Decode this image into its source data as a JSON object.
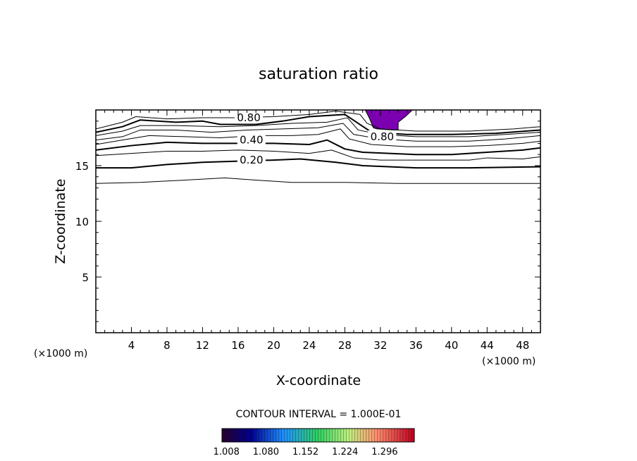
{
  "chart_data": {
    "type": "contour",
    "title": "saturation ratio",
    "xlabel": "X-coordinate",
    "ylabel": "Z-coordinate",
    "x_unit_left": "(×1000 m)",
    "x_unit_right": "(×1000 m)",
    "xlim": [
      0,
      50
    ],
    "ylim": [
      0,
      20
    ],
    "x_ticks": [
      4,
      8,
      12,
      16,
      20,
      24,
      28,
      32,
      36,
      40,
      44,
      48
    ],
    "x_tick_labels": [
      "4",
      "8",
      "12",
      "16",
      "20",
      "24",
      "28",
      "32",
      "36",
      "40",
      "44",
      "48"
    ],
    "y_ticks": [
      5,
      10,
      15
    ],
    "y_tick_labels": [
      "5",
      "10",
      "15"
    ],
    "contour_interval_text": "CONTOUR INTERVAL = 1.000E-01",
    "contour_labels": [
      {
        "text": "0.80",
        "x": 17.2,
        "z": 19.3
      },
      {
        "text": "0.40",
        "x": 17.5,
        "z": 17.3
      },
      {
        "text": "0.20",
        "x": 17.5,
        "z": 15.5
      },
      {
        "text": "0.80",
        "x": 32.2,
        "z": 17.6
      }
    ],
    "contours": [
      {
        "level": 0.1,
        "bold": false,
        "points": [
          [
            0,
            13.4
          ],
          [
            5,
            13.5
          ],
          [
            10,
            13.7
          ],
          [
            14.5,
            13.9
          ],
          [
            18,
            13.7
          ],
          [
            22,
            13.5
          ],
          [
            28,
            13.5
          ],
          [
            34,
            13.4
          ],
          [
            40,
            13.4
          ],
          [
            44,
            13.4
          ],
          [
            50,
            13.4
          ]
        ]
      },
      {
        "level": 0.2,
        "bold": true,
        "points": [
          [
            0,
            14.8
          ],
          [
            4,
            14.8
          ],
          [
            8,
            15.1
          ],
          [
            12,
            15.3
          ],
          [
            16,
            15.4
          ],
          [
            20,
            15.5
          ],
          [
            23,
            15.6
          ],
          [
            27,
            15.3
          ],
          [
            30,
            15.0
          ],
          [
            36,
            14.8
          ],
          [
            42,
            14.8
          ],
          [
            50,
            14.9
          ]
        ]
      },
      {
        "level": 0.3,
        "bold": false,
        "points": [
          [
            0,
            15.9
          ],
          [
            4,
            16.1
          ],
          [
            8,
            16.3
          ],
          [
            12,
            16.3
          ],
          [
            16,
            16.4
          ],
          [
            20,
            16.3
          ],
          [
            24,
            16.1
          ],
          [
            26.5,
            16.4
          ],
          [
            29,
            15.7
          ],
          [
            32,
            15.5
          ],
          [
            36,
            15.5
          ],
          [
            42,
            15.5
          ],
          [
            44,
            15.7
          ],
          [
            48,
            15.6
          ],
          [
            50,
            15.8
          ]
        ]
      },
      {
        "level": 0.4,
        "bold": true,
        "points": [
          [
            0,
            16.4
          ],
          [
            4,
            16.8
          ],
          [
            8,
            17.1
          ],
          [
            12,
            17.0
          ],
          [
            16,
            17.0
          ],
          [
            20,
            17.0
          ],
          [
            24,
            16.9
          ],
          [
            26,
            17.3
          ],
          [
            28,
            16.5
          ],
          [
            30,
            16.2
          ],
          [
            33,
            16.1
          ],
          [
            36,
            16.0
          ],
          [
            40,
            16.0
          ],
          [
            44,
            16.2
          ],
          [
            48,
            16.4
          ],
          [
            50,
            16.6
          ]
        ]
      },
      {
        "level": 0.5,
        "bold": false,
        "points": [
          [
            0,
            16.9
          ],
          [
            3,
            17.3
          ],
          [
            6,
            17.7
          ],
          [
            10,
            17.6
          ],
          [
            14,
            17.5
          ],
          [
            18,
            17.7
          ],
          [
            22,
            17.7
          ],
          [
            25,
            17.8
          ],
          [
            27.5,
            18.3
          ],
          [
            28.5,
            17.4
          ],
          [
            31,
            16.9
          ],
          [
            35,
            16.7
          ],
          [
            40,
            16.7
          ],
          [
            44,
            16.8
          ],
          [
            48,
            17.0
          ],
          [
            50,
            17.2
          ]
        ]
      },
      {
        "level": 0.6,
        "bold": false,
        "points": [
          [
            0,
            17.3
          ],
          [
            3,
            17.6
          ],
          [
            5,
            18.2
          ],
          [
            9,
            18.2
          ],
          [
            13,
            18.0
          ],
          [
            17,
            18.2
          ],
          [
            21,
            18.3
          ],
          [
            25,
            18.4
          ],
          [
            27.8,
            18.8
          ],
          [
            29,
            17.8
          ],
          [
            32,
            17.4
          ],
          [
            36,
            17.2
          ],
          [
            42,
            17.2
          ],
          [
            46,
            17.4
          ],
          [
            50,
            17.7
          ]
        ]
      },
      {
        "level": 0.7,
        "bold": false,
        "points": [
          [
            0,
            17.7
          ],
          [
            3,
            18.1
          ],
          [
            5,
            18.6
          ],
          [
            9,
            18.6
          ],
          [
            14,
            18.5
          ],
          [
            18,
            18.6
          ],
          [
            22,
            18.8
          ],
          [
            26,
            18.9
          ],
          [
            28.3,
            19.3
          ],
          [
            29.5,
            18.2
          ],
          [
            32,
            17.8
          ],
          [
            36,
            17.6
          ],
          [
            42,
            17.6
          ],
          [
            46,
            17.8
          ],
          [
            50,
            18.0
          ]
        ]
      },
      {
        "level": 0.8,
        "bold": true,
        "points": [
          [
            0,
            18.0
          ],
          [
            3,
            18.5
          ],
          [
            5,
            19.1
          ],
          [
            9,
            18.9
          ],
          [
            12,
            19.0
          ],
          [
            14,
            18.7
          ],
          [
            18,
            18.7
          ],
          [
            21,
            19.0
          ],
          [
            24,
            19.4
          ],
          [
            28,
            19.6
          ],
          [
            29.5,
            18.8
          ],
          [
            31,
            18.0
          ],
          [
            35,
            17.8
          ],
          [
            40,
            17.8
          ],
          [
            45,
            17.9
          ],
          [
            50,
            18.2
          ]
        ]
      },
      {
        "level": 0.9,
        "bold": false,
        "points": [
          [
            0,
            18.3
          ],
          [
            3,
            18.9
          ],
          [
            4.5,
            19.4
          ],
          [
            8,
            19.2
          ],
          [
            12,
            19.3
          ],
          [
            16,
            19.3
          ],
          [
            20,
            19.4
          ],
          [
            24,
            19.6
          ],
          [
            27,
            19.9
          ],
          [
            29.7,
            19.6
          ],
          [
            30.5,
            18.8
          ],
          [
            32,
            18.3
          ],
          [
            36,
            18.1
          ],
          [
            42,
            18.1
          ],
          [
            47,
            18.3
          ],
          [
            50,
            18.5
          ]
        ]
      }
    ],
    "supersaturated_region": {
      "fill_color": "#7b00b0",
      "points": [
        [
          30.3,
          20.0
        ],
        [
          30.8,
          19.2
        ],
        [
          31.2,
          18.4
        ],
        [
          31.6,
          18.3
        ],
        [
          33.5,
          18.2
        ],
        [
          34.0,
          18.2
        ],
        [
          34.0,
          18.9
        ],
        [
          34.8,
          19.4
        ],
        [
          35.6,
          20.0
        ]
      ]
    },
    "colorbar": {
      "tick_labels": [
        "1.008",
        "1.080",
        "1.152",
        "1.224",
        "1.296"
      ],
      "ticks": [
        1.008,
        1.08,
        1.152,
        1.224,
        1.296
      ],
      "range": [
        1.0,
        1.35
      ]
    }
  }
}
